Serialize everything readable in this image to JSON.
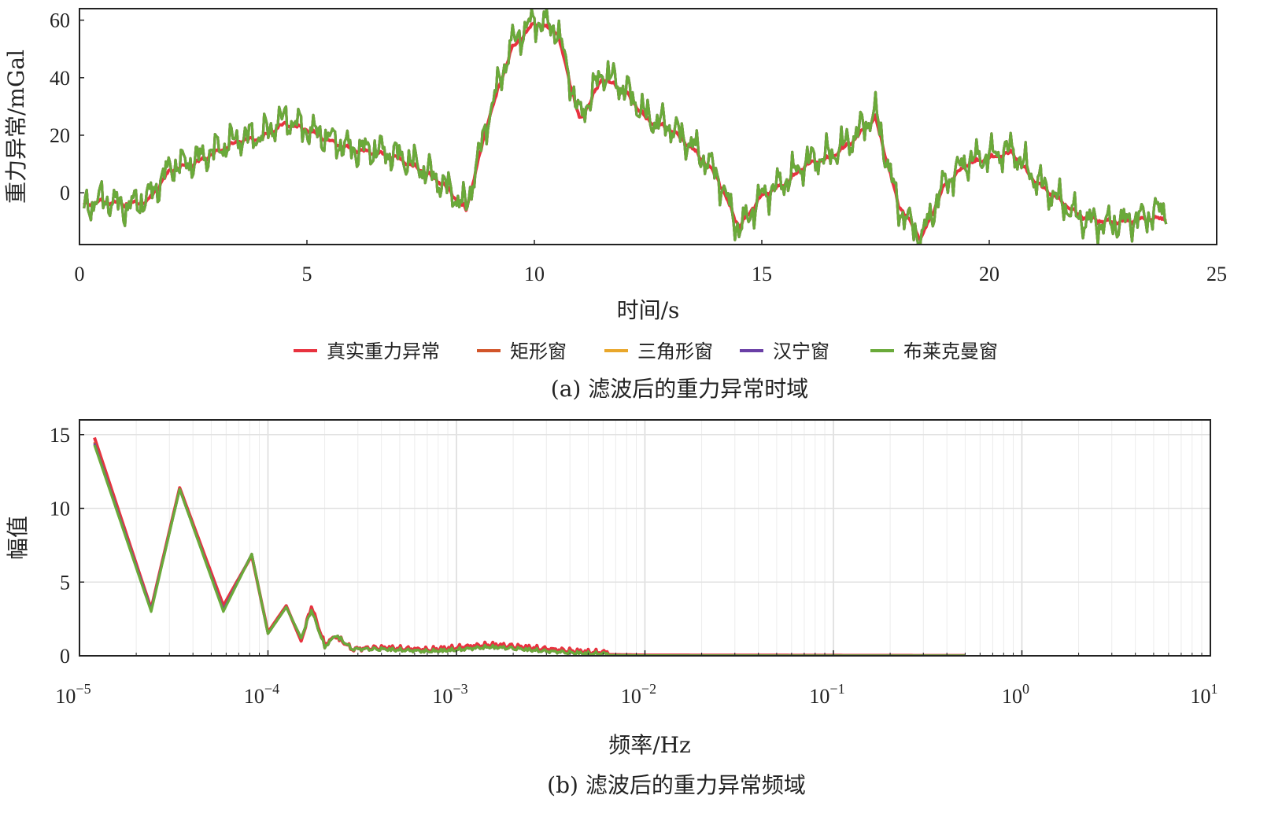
{
  "colors": {
    "真实重力异常": "#e8323f",
    "矩形窗": "#d2552a",
    "三角形窗": "#e9a72b",
    "汉宁窗": "#6a3fa6",
    "布莱克曼窗": "#6aaa3a",
    "axis": "#222222",
    "grid": "#e4e4e4"
  },
  "chart_data": [
    {
      "type": "line",
      "caption": "(a) 滤波后的重力异常时域",
      "xlabel": "时间/s",
      "ylabel": "重力异常/mGal",
      "xlim": [
        0,
        25
      ],
      "ylim": [
        -18,
        64
      ],
      "xticks": [
        0,
        5,
        10,
        15,
        20,
        25
      ],
      "yticks": [
        0,
        20,
        40,
        60
      ],
      "grid": false,
      "legend_position": "below-axes",
      "series": [
        {
          "name": "真实重力异常",
          "x": [
            0.1,
            0.5,
            1.0,
            1.5,
            2.0,
            2.5,
            3.0,
            3.5,
            4.0,
            4.5,
            5.0,
            5.5,
            6.0,
            6.5,
            7.0,
            7.5,
            8.0,
            8.5,
            9.0,
            9.5,
            10.0,
            10.5,
            11.0,
            11.5,
            12.0,
            12.5,
            13.0,
            13.5,
            14.0,
            14.5,
            15.0,
            15.5,
            16.0,
            16.5,
            17.0,
            17.5,
            18.0,
            18.5,
            19.0,
            19.5,
            20.0,
            20.5,
            21.0,
            21.5,
            22.0,
            22.5,
            23.0,
            23.5,
            23.9
          ],
          "y": [
            -4,
            -3,
            -4,
            -3,
            8,
            10,
            14,
            18,
            19,
            24,
            22,
            18,
            15,
            14,
            12,
            8,
            3,
            -6,
            26,
            50,
            59,
            56,
            25,
            40,
            35,
            25,
            22,
            15,
            6,
            -12,
            -1,
            3,
            10,
            12,
            18,
            26,
            -4,
            -16,
            2,
            10,
            12,
            14,
            4,
            -2,
            -8,
            -10,
            -10,
            -9,
            -9
          ]
        },
        {
          "name": "矩形窗",
          "x": [
            0.1,
            0.5,
            1.0,
            1.5,
            2.0,
            2.5,
            3.0,
            3.5,
            4.0,
            4.5,
            5.0,
            5.5,
            6.0,
            6.5,
            7.0,
            7.5,
            8.0,
            8.5,
            9.0,
            9.5,
            10.0,
            10.5,
            11.0,
            11.5,
            12.0,
            12.5,
            13.0,
            13.5,
            14.0,
            14.5,
            15.0,
            15.5,
            16.0,
            16.5,
            17.0,
            17.5,
            18.0,
            18.5,
            19.0,
            19.5,
            20.0,
            20.5,
            21.0,
            21.5,
            22.0,
            22.5,
            23.0,
            23.5,
            23.9
          ],
          "y": [
            -5,
            -2,
            -5,
            -2,
            9,
            11,
            15,
            19,
            20,
            26,
            22,
            19,
            15,
            15,
            13,
            9,
            3,
            -5,
            27,
            52,
            60,
            57,
            26,
            42,
            36,
            26,
            23,
            16,
            7,
            -13,
            -1,
            4,
            11,
            13,
            19,
            28,
            -5,
            -16,
            3,
            11,
            13,
            15,
            5,
            -2,
            -9,
            -11,
            -10,
            -8,
            -5
          ]
        },
        {
          "name": "三角形窗",
          "x": [
            0.1,
            0.5,
            1.0,
            1.5,
            2.0,
            2.5,
            3.0,
            3.5,
            4.0,
            4.5,
            5.0,
            5.5,
            6.0,
            6.5,
            7.0,
            7.5,
            8.0,
            8.5,
            9.0,
            9.5,
            10.0,
            10.5,
            11.0,
            11.5,
            12.0,
            12.5,
            13.0,
            13.5,
            14.0,
            14.5,
            15.0,
            15.5,
            16.0,
            16.5,
            17.0,
            17.5,
            18.0,
            18.5,
            19.0,
            19.5,
            20.0,
            20.5,
            21.0,
            21.5,
            22.0,
            22.5,
            23.0,
            23.5,
            23.9
          ],
          "y": [
            -5,
            -2,
            -5,
            -2,
            9,
            11,
            15,
            19,
            20,
            26,
            22,
            19,
            15,
            15,
            13,
            9,
            3,
            -5,
            27,
            52,
            60,
            57,
            26,
            42,
            36,
            26,
            23,
            16,
            7,
            -13,
            -1,
            4,
            11,
            13,
            19,
            28,
            -5,
            -16,
            3,
            11,
            13,
            15,
            5,
            -2,
            -9,
            -11,
            -10,
            -8,
            -5
          ]
        },
        {
          "name": "汉宁窗",
          "x": [
            0.1,
            0.5,
            1.0,
            1.5,
            2.0,
            2.5,
            3.0,
            3.5,
            4.0,
            4.5,
            5.0,
            5.5,
            6.0,
            6.5,
            7.0,
            7.5,
            8.0,
            8.5,
            9.0,
            9.5,
            10.0,
            10.5,
            11.0,
            11.5,
            12.0,
            12.5,
            13.0,
            13.5,
            14.0,
            14.5,
            15.0,
            15.5,
            16.0,
            16.5,
            17.0,
            17.5,
            18.0,
            18.5,
            19.0,
            19.5,
            20.0,
            20.5,
            21.0,
            21.5,
            22.0,
            22.5,
            23.0,
            23.5,
            23.9
          ],
          "y": [
            -5,
            -2,
            -5,
            -2,
            9,
            11,
            15,
            19,
            20,
            26,
            22,
            19,
            15,
            15,
            13,
            9,
            3,
            -5,
            27,
            52,
            60,
            57,
            26,
            42,
            36,
            26,
            23,
            16,
            7,
            -13,
            -1,
            4,
            11,
            13,
            19,
            28,
            -5,
            -16,
            3,
            11,
            13,
            15,
            5,
            -2,
            -9,
            -11,
            -10,
            -8,
            -5
          ]
        },
        {
          "name": "布莱克曼窗",
          "x": [
            0.1,
            0.5,
            1.0,
            1.5,
            2.0,
            2.5,
            3.0,
            3.5,
            4.0,
            4.5,
            5.0,
            5.5,
            6.0,
            6.5,
            7.0,
            7.5,
            8.0,
            8.5,
            9.0,
            9.5,
            10.0,
            10.5,
            11.0,
            11.5,
            12.0,
            12.5,
            13.0,
            13.5,
            14.0,
            14.5,
            15.0,
            15.5,
            16.0,
            16.5,
            17.0,
            17.5,
            18.0,
            18.5,
            19.0,
            19.5,
            20.0,
            20.5,
            21.0,
            21.5,
            22.0,
            22.5,
            23.0,
            23.5,
            23.9
          ],
          "y": [
            -5,
            -2,
            -5,
            -2,
            9,
            11,
            15,
            19,
            20,
            26,
            22,
            19,
            15,
            15,
            13,
            9,
            3,
            -5,
            27,
            52,
            60,
            57,
            26,
            42,
            36,
            26,
            23,
            16,
            7,
            -13,
            -1,
            4,
            11,
            13,
            19,
            28,
            -5,
            -16,
            3,
            11,
            13,
            15,
            5,
            -2,
            -9,
            -11,
            -10,
            -8,
            -5
          ]
        }
      ]
    },
    {
      "type": "line",
      "caption": "(b) 滤波后的重力异常频域",
      "xlabel": "频率/Hz",
      "ylabel": "幅值",
      "xscale": "log",
      "xlim": [
        1e-05,
        10
      ],
      "ylim": [
        0,
        16
      ],
      "xtick_labels": [
        {
          "base": "10",
          "exp": "−5"
        },
        {
          "base": "10",
          "exp": "−4"
        },
        {
          "base": "10",
          "exp": "−3"
        },
        {
          "base": "10",
          "exp": "−2"
        },
        {
          "base": "10",
          "exp": "−1"
        },
        {
          "base": "10",
          "exp": "0"
        },
        {
          "base": "10",
          "exp": "1"
        }
      ],
      "yticks": [
        0,
        5,
        10,
        15
      ],
      "grid": true,
      "series": [
        {
          "name": "真实重力异常",
          "x": [
            1.2e-05,
            2.4e-05,
            3.4e-05,
            5.8e-05,
            8.2e-05,
            0.0001,
            0.000125,
            0.00015,
            0.00017,
            0.0002,
            0.00023,
            0.00028,
            0.0004,
            0.0007,
            0.001,
            0.0015,
            0.002,
            0.003,
            0.005,
            0.01,
            0.1,
            0.5
          ],
          "y": [
            14.8,
            3.2,
            11.4,
            3.4,
            6.8,
            1.6,
            3.4,
            1.0,
            3.2,
            0.6,
            1.2,
            0.3,
            0.4,
            0.25,
            0.4,
            0.6,
            0.5,
            0.3,
            0.1,
            0.05,
            0.03,
            0.02
          ]
        },
        {
          "name": "矩形窗",
          "x": [
            1.2e-05,
            2.4e-05,
            3.4e-05,
            5.8e-05,
            8.2e-05,
            0.0001,
            0.000125,
            0.00015,
            0.00017,
            0.0002,
            0.00023,
            0.00028,
            0.0004,
            0.0007,
            0.001,
            0.0015,
            0.002,
            0.003,
            0.005,
            0.01,
            0.1,
            0.5
          ],
          "y": [
            14.5,
            3.1,
            11.3,
            3.1,
            6.9,
            1.5,
            3.3,
            1.2,
            3.0,
            0.5,
            1.3,
            0.35,
            0.35,
            0.2,
            0.3,
            0.5,
            0.4,
            0.2,
            0.05,
            0.02,
            0.01,
            0.01
          ]
        },
        {
          "name": "三角形窗",
          "x": [
            1.2e-05,
            2.4e-05,
            3.4e-05,
            5.8e-05,
            8.2e-05,
            0.0001,
            0.000125,
            0.00015,
            0.00017,
            0.0002,
            0.00023,
            0.00028,
            0.0004,
            0.0007,
            0.001,
            0.0015,
            0.002,
            0.003,
            0.005,
            0.01,
            0.1,
            0.5
          ],
          "y": [
            14.4,
            3.1,
            11.3,
            3.1,
            6.9,
            1.5,
            3.3,
            1.2,
            3.0,
            0.5,
            1.3,
            0.35,
            0.35,
            0.2,
            0.3,
            0.5,
            0.4,
            0.2,
            0.05,
            0.02,
            0.01,
            0.01
          ]
        },
        {
          "name": "汉宁窗",
          "x": [
            1.2e-05,
            2.4e-05,
            3.4e-05,
            5.8e-05,
            8.2e-05,
            0.0001,
            0.000125,
            0.00015,
            0.00017,
            0.0002,
            0.00023,
            0.00028,
            0.0004,
            0.0007,
            0.001,
            0.0015,
            0.002,
            0.003,
            0.005,
            0.01,
            0.1,
            0.5
          ],
          "y": [
            14.4,
            3.1,
            11.3,
            3.1,
            6.9,
            1.5,
            3.3,
            1.2,
            3.0,
            0.5,
            1.3,
            0.35,
            0.35,
            0.2,
            0.3,
            0.5,
            0.4,
            0.2,
            0.05,
            0.02,
            0.01,
            0.01
          ]
        },
        {
          "name": "布莱克曼窗",
          "x": [
            1.2e-05,
            2.4e-05,
            3.4e-05,
            5.8e-05,
            8.2e-05,
            0.0001,
            0.000125,
            0.00015,
            0.00017,
            0.0002,
            0.00023,
            0.00028,
            0.0004,
            0.0007,
            0.001,
            0.0015,
            0.002,
            0.003,
            0.005,
            0.01,
            0.1,
            0.5
          ],
          "y": [
            14.3,
            3.0,
            11.3,
            3.0,
            6.9,
            1.5,
            3.3,
            1.2,
            3.0,
            0.5,
            1.3,
            0.35,
            0.35,
            0.2,
            0.3,
            0.5,
            0.4,
            0.2,
            0.05,
            0.02,
            0.01,
            0.01
          ]
        }
      ]
    }
  ]
}
